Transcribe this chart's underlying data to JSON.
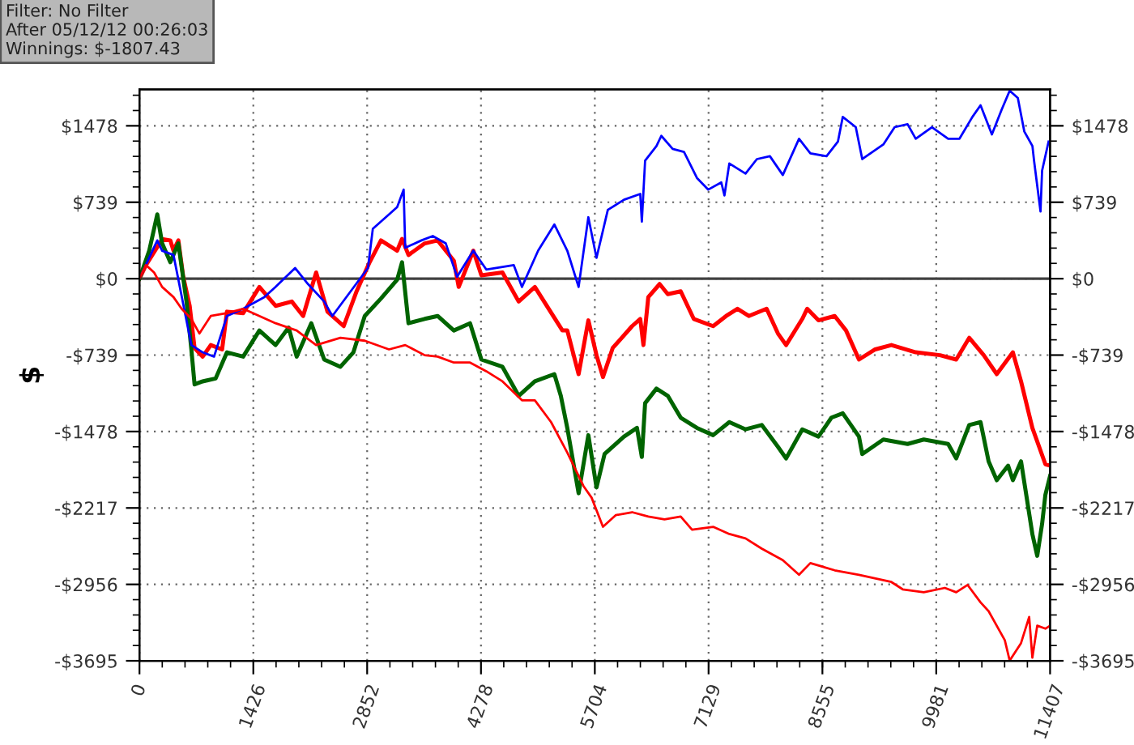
{
  "chart_data": {
    "type": "line",
    "ylabel": "$",
    "annotations": [
      "Filter: No Filter",
      "After 05/12/12 00:26:03",
      "Winnings: $-1807.43"
    ],
    "xlim": [
      0,
      11407
    ],
    "xticks": [
      0,
      1426,
      2852,
      4278,
      5704,
      7129,
      8555,
      9981,
      11407
    ],
    "ylim": [
      -3695,
      1830
    ],
    "yticks": [
      {
        "value": -3695,
        "label": "-$3695"
      },
      {
        "value": -2956,
        "label": "-$2956"
      },
      {
        "value": -2217,
        "label": "-$2217"
      },
      {
        "value": -1478,
        "label": "-$1478"
      },
      {
        "value": -739,
        "label": "-$739"
      },
      {
        "value": 0,
        "label": "$0"
      },
      {
        "value": 739,
        "label": "$739"
      },
      {
        "value": 1478,
        "label": "$1478"
      }
    ],
    "y2lim": [
      -3695,
      1830
    ],
    "y2ticks": [
      {
        "value": -3695,
        "label": "-$3695"
      },
      {
        "value": -2956,
        "label": "-$2956"
      },
      {
        "value": -2217,
        "label": "-$2217"
      },
      {
        "value": -1478,
        "label": "-$1478"
      },
      {
        "value": -739,
        "label": "-$739"
      },
      {
        "value": 0,
        "label": "$0"
      },
      {
        "value": 739,
        "label": "$739"
      },
      {
        "value": 1478,
        "label": "$1478"
      }
    ],
    "grid": true,
    "ref_lines": [
      {
        "axis": "y",
        "value": 0,
        "color": "#404040",
        "line_style": "solid"
      }
    ],
    "series": [
      {
        "color": "#0000ff",
        "x": [
          0,
          223,
          284,
          426,
          650,
          792,
          934,
          1096,
          1299,
          1563,
          1705,
          1949,
          2111,
          2314,
          2416,
          2619,
          2862,
          2923,
          3126,
          3228,
          3309,
          3329,
          3532,
          3674,
          3837,
          3979,
          4182,
          4344,
          4689,
          4791,
          4994,
          5197,
          5359,
          5501,
          5623,
          5725,
          5867,
          6070,
          6273,
          6293,
          6334,
          6476,
          6537,
          6679,
          6821,
          6983,
          7125,
          7288,
          7328,
          7389,
          7592,
          7734,
          7897,
          8059,
          8262,
          8404,
          8607,
          8749,
          8810,
          8973,
          9054,
          9318,
          9460,
          9622,
          9724,
          9927,
          10130,
          10272,
          10434,
          10536,
          10678,
          10800,
          10901,
          11003,
          11084,
          11186,
          11206,
          11287,
          11307,
          11388
        ],
        "values": [
          0,
          370,
          270,
          229,
          -642,
          -712,
          -754,
          -361,
          -291,
          -179,
          -80,
          103,
          -52,
          -221,
          -361,
          -150,
          103,
          482,
          622,
          692,
          861,
          299,
          370,
          412,
          341,
          18,
          271,
          89,
          131,
          -80,
          271,
          524,
          271,
          -80,
          594,
          201,
          665,
          763,
          819,
          552,
          1142,
          1282,
          1381,
          1254,
          1226,
          974,
          861,
          931,
          805,
          1114,
          1016,
          1156,
          1184,
          1002,
          1353,
          1212,
          1184,
          1325,
          1564,
          1465,
          1156,
          1297,
          1465,
          1493,
          1353,
          1465,
          1353,
          1353,
          1564,
          1676,
          1395,
          1634,
          1817,
          1747,
          1423,
          1282,
          1142,
          650,
          1044,
          1325
        ]
      },
      {
        "color": "#ff0000",
        "x": [
          0,
          81,
          284,
          386,
          426,
          487,
          548,
          629,
          690,
          792,
          893,
          1035,
          1096,
          1299,
          1502,
          1705,
          1908,
          2050,
          2213,
          2355,
          2558,
          2720,
          2883,
          3025,
          3228,
          3289,
          3370,
          3573,
          3735,
          3938,
          3999,
          4182,
          4283,
          4547,
          4750,
          4953,
          5298,
          5359,
          5501,
          5623,
          5725,
          5806,
          5928,
          6171,
          6273,
          6313,
          6374,
          6516,
          6618,
          6780,
          6943,
          7186,
          7349,
          7491,
          7633,
          7856,
          7998,
          8100,
          8303,
          8364,
          8506,
          8709,
          8851,
          9013,
          9216,
          9419,
          9724,
          10028,
          10231,
          10394,
          10576,
          10739,
          10941,
          11043,
          11185,
          11348,
          11407
        ],
        "values": [
          0,
          131,
          382,
          370,
          271,
          370,
          18,
          -263,
          -670,
          -754,
          -642,
          -684,
          -319,
          -333,
          -80,
          -263,
          -221,
          -361,
          60,
          -319,
          -459,
          -122,
          159,
          370,
          271,
          384,
          229,
          341,
          370,
          173,
          -80,
          271,
          32,
          60,
          -221,
          -80,
          -501,
          -501,
          -923,
          -403,
          -740,
          -951,
          -670,
          -459,
          -389,
          -642,
          -178,
          -52,
          -150,
          -122,
          -389,
          -459,
          -361,
          -291,
          -361,
          -291,
          -530,
          -642,
          -389,
          -291,
          -403,
          -361,
          -501,
          -782,
          -684,
          -642,
          -712,
          -740,
          -782,
          -572,
          -740,
          -923,
          -712,
          -993,
          -1443,
          -1794,
          -1807
        ]
      },
      {
        "color": "#006400",
        "x": [
          0,
          122,
          223,
          284,
          386,
          487,
          589,
          650,
          690,
          792,
          954,
          1096,
          1299,
          1502,
          1705,
          1868,
          1969,
          2152,
          2314,
          2517,
          2680,
          2822,
          3025,
          3228,
          3289,
          3370,
          3573,
          3735,
          3938,
          4141,
          4283,
          4547,
          4750,
          4953,
          5197,
          5278,
          5359,
          5501,
          5623,
          5725,
          5826,
          6070,
          6232,
          6293,
          6334,
          6476,
          6618,
          6780,
          6983,
          7186,
          7389,
          7592,
          7795,
          7998,
          8100,
          8303,
          8506,
          8668,
          8810,
          9013,
          9054,
          9318,
          9622,
          9825,
          10130,
          10231,
          10394,
          10536,
          10637,
          10739,
          10881,
          10941,
          11043,
          11185,
          11246,
          11307,
          11348,
          11407
        ],
        "values": [
          0,
          271,
          622,
          341,
          159,
          341,
          -221,
          -684,
          -1022,
          -993,
          -965,
          -712,
          -754,
          -501,
          -642,
          -473,
          -754,
          -431,
          -782,
          -852,
          -712,
          -361,
          -192,
          -10,
          159,
          -431,
          -389,
          -361,
          -501,
          -431,
          -782,
          -852,
          -1133,
          -993,
          -923,
          -1133,
          -1443,
          -2075,
          -1513,
          -2019,
          -1696,
          -1527,
          -1443,
          -1724,
          -1204,
          -1063,
          -1133,
          -1344,
          -1443,
          -1513,
          -1387,
          -1457,
          -1415,
          -1626,
          -1738,
          -1457,
          -1527,
          -1344,
          -1302,
          -1527,
          -1696,
          -1555,
          -1598,
          -1555,
          -1598,
          -1738,
          -1415,
          -1387,
          -1766,
          -1949,
          -1808,
          -1949,
          -1766,
          -2469,
          -2680,
          -2371,
          -2090,
          -1907
        ]
      },
      {
        "color": "#ff0000",
        "x": [
          0,
          81,
          183,
          284,
          426,
          528,
          650,
          751,
          893,
          1096,
          1299,
          1502,
          1705,
          1969,
          2213,
          2517,
          2822,
          3126,
          3329,
          3573,
          3735,
          3938,
          4141,
          4344,
          4547,
          4791,
          4953,
          5156,
          5359,
          5562,
          5664,
          5806,
          5968,
          6171,
          6374,
          6577,
          6780,
          6922,
          7186,
          7389,
          7592,
          7795,
          8059,
          8262,
          8404,
          8709,
          9013,
          9419,
          9561,
          9825,
          10089,
          10231,
          10373,
          10536,
          10637,
          10840,
          10901,
          11043,
          11145,
          11185,
          11246,
          11348,
          11407
        ],
        "values": [
          0,
          131,
          60,
          -80,
          -178,
          -291,
          -389,
          -530,
          -361,
          -333,
          -291,
          -361,
          -431,
          -501,
          -642,
          -572,
          -600,
          -684,
          -642,
          -740,
          -754,
          -811,
          -811,
          -895,
          -993,
          -1176,
          -1176,
          -1387,
          -1682,
          -2005,
          -2118,
          -2399,
          -2286,
          -2258,
          -2300,
          -2328,
          -2300,
          -2427,
          -2399,
          -2469,
          -2511,
          -2610,
          -2722,
          -2863,
          -2750,
          -2820,
          -2863,
          -2933,
          -3004,
          -3032,
          -2990,
          -3032,
          -2961,
          -3130,
          -3215,
          -3496,
          -3693,
          -3524,
          -3271,
          -3665,
          -3355,
          -3384,
          -3355
        ]
      }
    ]
  }
}
